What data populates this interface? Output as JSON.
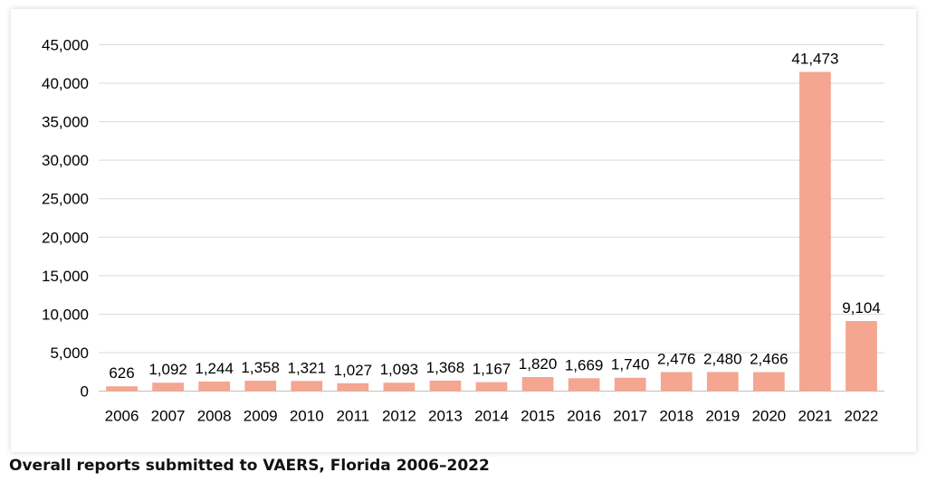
{
  "caption": "Overall reports submitted to VAERS, Florida 2006–2022",
  "colors": {
    "bar": "#f4a690",
    "grid": "#d9d9d9",
    "axis": "#bfbfbf",
    "text": "#000000"
  },
  "chart_data": {
    "type": "bar",
    "title": "",
    "xlabel": "",
    "ylabel": "",
    "categories": [
      "2006",
      "2007",
      "2008",
      "2009",
      "2010",
      "2011",
      "2012",
      "2013",
      "2014",
      "2015",
      "2016",
      "2017",
      "2018",
      "2019",
      "2020",
      "2021",
      "2022"
    ],
    "values": [
      626,
      1092,
      1244,
      1358,
      1321,
      1027,
      1093,
      1368,
      1167,
      1820,
      1669,
      1740,
      2476,
      2480,
      2466,
      41473,
      9104
    ],
    "value_labels": [
      "626",
      "1,092",
      "1,244",
      "1,358",
      "1,321",
      "1,027",
      "1,093",
      "1,368",
      "1,167",
      "1,820",
      "1,669",
      "1,740",
      "2,476",
      "2,480",
      "2,466",
      "41,473",
      "9,104"
    ],
    "ylim": [
      0,
      45000
    ],
    "yticks": [
      0,
      5000,
      10000,
      15000,
      20000,
      25000,
      30000,
      35000,
      40000,
      45000
    ],
    "ytick_labels": [
      "0",
      "5,000",
      "10,000",
      "15,000",
      "20,000",
      "25,000",
      "30,000",
      "35,000",
      "40,000",
      "45,000"
    ],
    "grid": true,
    "legend": "none"
  }
}
